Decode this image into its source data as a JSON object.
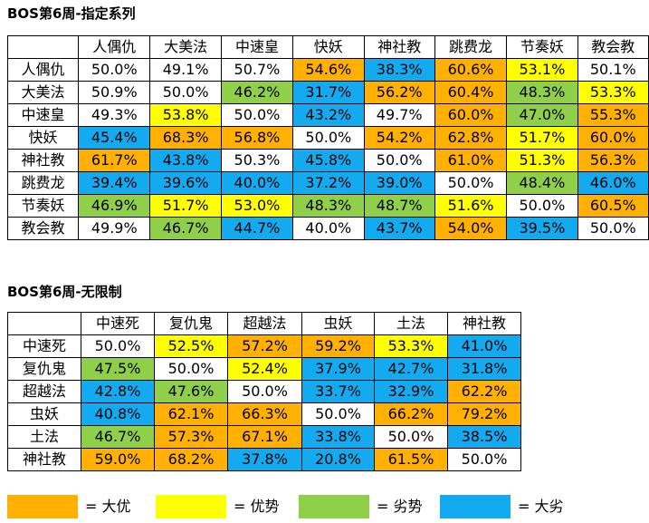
{
  "section1": {
    "title": "BOS第6周-指定系列",
    "columns": [
      "人偶仇",
      "大美法",
      "中速皇",
      "快妖",
      "神社教",
      "跳费龙",
      "节奏妖",
      "教会教"
    ],
    "rows": [
      {
        "label": "人偶仇",
        "values": [
          "50.0%",
          "49.1%",
          "50.7%",
          "54.6%",
          "38.3%",
          "60.6%",
          "53.1%",
          "50.1%"
        ],
        "tiers": [
          0,
          0,
          0,
          1,
          4,
          1,
          2,
          0
        ]
      },
      {
        "label": "大美法",
        "values": [
          "50.9%",
          "50.0%",
          "46.2%",
          "31.7%",
          "56.2%",
          "60.4%",
          "48.3%",
          "53.3%"
        ],
        "tiers": [
          0,
          0,
          3,
          4,
          1,
          1,
          3,
          2
        ]
      },
      {
        "label": "中速皇",
        "values": [
          "49.3%",
          "53.8%",
          "50.0%",
          "43.2%",
          "49.7%",
          "60.0%",
          "47.0%",
          "55.3%"
        ],
        "tiers": [
          0,
          2,
          0,
          4,
          0,
          1,
          3,
          1
        ]
      },
      {
        "label": "快妖",
        "values": [
          "45.4%",
          "68.3%",
          "56.8%",
          "50.0%",
          "54.2%",
          "62.8%",
          "51.7%",
          "60.0%"
        ],
        "tiers": [
          4,
          1,
          1,
          0,
          1,
          1,
          2,
          1
        ]
      },
      {
        "label": "神社教",
        "values": [
          "61.7%",
          "43.8%",
          "50.3%",
          "45.8%",
          "50.0%",
          "61.0%",
          "51.3%",
          "56.3%"
        ],
        "tiers": [
          1,
          4,
          0,
          4,
          0,
          1,
          2,
          1
        ]
      },
      {
        "label": "跳费龙",
        "values": [
          "39.4%",
          "39.6%",
          "40.0%",
          "37.2%",
          "39.0%",
          "50.0%",
          "48.4%",
          "46.0%"
        ],
        "tiers": [
          4,
          4,
          4,
          4,
          4,
          0,
          3,
          4
        ]
      },
      {
        "label": "节奏妖",
        "values": [
          "46.9%",
          "51.7%",
          "53.0%",
          "48.3%",
          "48.7%",
          "51.6%",
          "50.0%",
          "60.5%"
        ],
        "tiers": [
          3,
          2,
          2,
          3,
          3,
          2,
          0,
          1
        ]
      },
      {
        "label": "教会教",
        "values": [
          "49.9%",
          "46.7%",
          "44.7%",
          "40.0%",
          "43.7%",
          "54.0%",
          "39.5%",
          "50.0%"
        ],
        "tiers": [
          0,
          3,
          4,
          0,
          4,
          1,
          4,
          0
        ]
      }
    ]
  },
  "section2": {
    "title": "BOS第6周-无限制",
    "columns": [
      "中速死",
      "复仇鬼",
      "超越法",
      "虫妖",
      "土法",
      "神社教"
    ],
    "rows": [
      {
        "label": "中速死",
        "values": [
          "50.0%",
          "52.5%",
          "57.2%",
          "59.2%",
          "53.3%",
          "41.0%"
        ],
        "tiers": [
          0,
          2,
          1,
          1,
          2,
          4
        ]
      },
      {
        "label": "复仇鬼",
        "values": [
          "47.5%",
          "50.0%",
          "52.4%",
          "37.9%",
          "42.7%",
          "31.8%"
        ],
        "tiers": [
          3,
          0,
          2,
          4,
          4,
          4
        ]
      },
      {
        "label": "超越法",
        "values": [
          "42.8%",
          "47.6%",
          "50.0%",
          "33.7%",
          "32.9%",
          "62.2%"
        ],
        "tiers": [
          4,
          3,
          0,
          4,
          4,
          1
        ]
      },
      {
        "label": "虫妖",
        "values": [
          "40.8%",
          "62.1%",
          "66.3%",
          "50.0%",
          "66.2%",
          "79.2%"
        ],
        "tiers": [
          4,
          1,
          1,
          0,
          1,
          1
        ]
      },
      {
        "label": "土法",
        "values": [
          "46.7%",
          "57.3%",
          "67.1%",
          "33.8%",
          "50.0%",
          "38.5%"
        ],
        "tiers": [
          3,
          1,
          1,
          4,
          0,
          4
        ]
      },
      {
        "label": "神社教",
        "values": [
          "59.0%",
          "68.2%",
          "37.8%",
          "20.8%",
          "61.5%",
          "50.0%"
        ],
        "tiers": [
          1,
          1,
          4,
          4,
          1,
          0
        ]
      }
    ]
  },
  "legend": [
    {
      "label": "= 大优",
      "color": "#ffb000"
    },
    {
      "label": "= 优势",
      "color": "#ffff00"
    },
    {
      "label": "= 劣势",
      "color": "#8fcf4a"
    },
    {
      "label": "= 大劣",
      "color": "#14aaf0"
    }
  ]
}
